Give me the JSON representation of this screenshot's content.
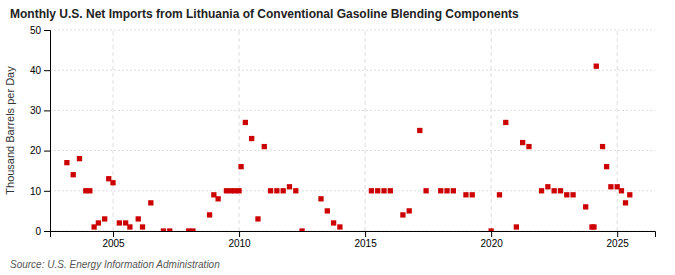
{
  "chart_data": {
    "type": "scatter",
    "title": "Monthly U.S. Net Imports from Lithuania of Conventional Gasoline Blending Components",
    "ylabel": "Thousand Barrels per Day",
    "source": "Source: U.S. Energy Information Administration",
    "color": "#cc0000",
    "marker": "square",
    "grid": true,
    "xlim": [
      2002.5,
      2026.5
    ],
    "ylim": [
      0,
      50
    ],
    "xticks": [
      2005,
      2010,
      2015,
      2020,
      2025
    ],
    "yticks": [
      0,
      10,
      20,
      30,
      40,
      50
    ],
    "x": [
      2003.17,
      2003.42,
      2003.67,
      2003.92,
      2004.08,
      2004.25,
      2004.42,
      2004.67,
      2004.83,
      2005.0,
      2005.25,
      2005.5,
      2005.67,
      2006.0,
      2006.17,
      2006.5,
      2007.0,
      2007.25,
      2008.0,
      2008.17,
      2008.83,
      2009.0,
      2009.17,
      2009.5,
      2009.67,
      2009.83,
      2010.0,
      2010.08,
      2010.25,
      2010.5,
      2010.75,
      2011.0,
      2011.25,
      2011.5,
      2011.75,
      2012.0,
      2012.25,
      2012.5,
      2013.25,
      2013.5,
      2013.75,
      2014.0,
      2015.25,
      2015.5,
      2015.75,
      2016.0,
      2016.5,
      2016.75,
      2017.17,
      2017.42,
      2018.0,
      2018.25,
      2018.5,
      2019.0,
      2019.25,
      2020.0,
      2020.33,
      2020.58,
      2021.0,
      2021.25,
      2021.5,
      2022.0,
      2022.25,
      2022.5,
      2022.75,
      2023.0,
      2023.25,
      2023.75,
      2024.0,
      2024.08,
      2024.17,
      2024.42,
      2024.58,
      2024.75,
      2025.0,
      2025.17,
      2025.33,
      2025.5
    ],
    "values": [
      17,
      14,
      18,
      10,
      10,
      1,
      2,
      3,
      13,
      12,
      2,
      2,
      1,
      3,
      1,
      7,
      0,
      0,
      0,
      0,
      4,
      9,
      8,
      10,
      10,
      10,
      10,
      16,
      27,
      23,
      3,
      21,
      10,
      10,
      10,
      11,
      10,
      0,
      8,
      5,
      2,
      1,
      10,
      10,
      10,
      10,
      4,
      5,
      25,
      10,
      10,
      10,
      10,
      9,
      9,
      0,
      9,
      27,
      1,
      22,
      21,
      10,
      11,
      10,
      10,
      9,
      9,
      6,
      1,
      1,
      41,
      21,
      16,
      11,
      11,
      10,
      7,
      9
    ]
  }
}
